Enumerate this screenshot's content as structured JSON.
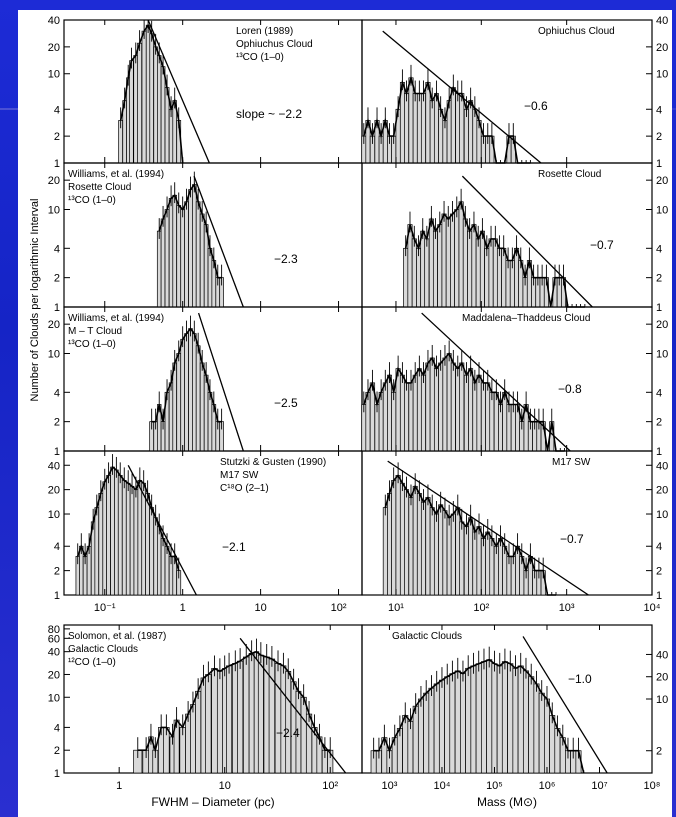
{
  "ylabel": "Number of Clouds per logarithmic Interval",
  "left_xlabel": "FWHM – Diameter (pc)",
  "right_xlabel": "Mass (M⊙)",
  "left_xticks": [
    {
      "v": 0.1,
      "label": "10⁻¹"
    },
    {
      "v": 1,
      "label": "1"
    },
    {
      "v": 10,
      "label": "10"
    },
    {
      "v": 100,
      "label": "10²"
    }
  ],
  "right_xticks": [
    {
      "v": 10,
      "label": "10¹"
    },
    {
      "v": 100,
      "label": "10²"
    },
    {
      "v": 1000,
      "label": "10³"
    },
    {
      "v": 10000,
      "label": "10⁴"
    }
  ],
  "bottom_left_xticks": [
    {
      "v": 1,
      "label": "1"
    },
    {
      "v": 10,
      "label": "10"
    },
    {
      "v": 100,
      "label": "10²"
    }
  ],
  "bottom_right_xticks": [
    {
      "v": 1000,
      "label": "10³"
    },
    {
      "v": 10000,
      "label": "10⁴"
    },
    {
      "v": 100000,
      "label": "10⁵"
    },
    {
      "v": 1000000,
      "label": "10⁶"
    },
    {
      "v": 10000000,
      "label": "10⁷"
    },
    {
      "v": 100000000,
      "label": "10⁸"
    }
  ],
  "chart_data": [
    {
      "type": "bar",
      "panel": "left-1",
      "annotation": [
        "Loren (1989)",
        "Ophiuchus Cloud",
        "¹³CO (1–0)"
      ],
      "slope_label": "slope ~ −2.2",
      "xscale": "log",
      "yscale": "log",
      "xlim": [
        0.03,
        200
      ],
      "ylim": [
        1,
        40
      ],
      "yticks": [
        {
          "v": 1,
          "label": "1"
        },
        {
          "v": 2,
          "label": "2"
        },
        {
          "v": 4,
          "label": "4"
        },
        {
          "v": 10,
          "label": "10"
        },
        {
          "v": 20,
          "label": "20"
        },
        {
          "v": 40,
          "label": "40"
        }
      ],
      "x": [
        0.16,
        0.18,
        0.2,
        0.22,
        0.25,
        0.28,
        0.32,
        0.36,
        0.4,
        0.45,
        0.5,
        0.56,
        0.63,
        0.71,
        0.79,
        0.89,
        1.0
      ],
      "y": [
        3,
        5,
        9,
        14,
        16,
        22,
        30,
        35,
        28,
        20,
        16,
        12,
        7,
        4,
        5,
        3,
        1
      ],
      "fit": {
        "x": [
          0.36,
          2.2
        ],
        "y": [
          40,
          1
        ]
      }
    },
    {
      "type": "bar",
      "panel": "right-1",
      "annotation": [
        "Ophiuchus Cloud"
      ],
      "slope_label": "−0.6",
      "xscale": "log",
      "yscale": "log",
      "xlim": [
        4,
        10000
      ],
      "ylim": [
        1,
        40
      ],
      "yticks": [
        {
          "v": 1,
          "label": "1"
        },
        {
          "v": 2,
          "label": "2"
        },
        {
          "v": 4,
          "label": "4"
        },
        {
          "v": 10,
          "label": "10"
        },
        {
          "v": 20,
          "label": "20"
        },
        {
          "v": 40,
          "label": "40"
        }
      ],
      "x": [
        4.2,
        4.7,
        5.3,
        6,
        6.7,
        7.5,
        8.4,
        9.4,
        10.6,
        11.9,
        13.3,
        15,
        16.8,
        18.8,
        21,
        23.7,
        26.6,
        29.8,
        33.4,
        37.5,
        42,
        47,
        53,
        59,
        67,
        75,
        84,
        94,
        106,
        119,
        133,
        150,
        168,
        188,
        211,
        237,
        266,
        298,
        335,
        376
      ],
      "y": [
        2,
        3,
        2,
        3,
        2,
        3,
        2,
        2,
        4,
        8,
        6,
        9,
        6,
        6,
        6,
        8,
        5,
        6,
        4,
        3,
        5,
        7,
        6,
        6,
        4,
        5,
        4,
        3,
        2,
        2,
        2,
        1,
        1,
        1,
        2,
        2,
        1,
        1,
        1,
        1
      ],
      "fit": {
        "x": [
          7,
          500
        ],
        "y": [
          30,
          1
        ]
      }
    },
    {
      "type": "bar",
      "panel": "left-2",
      "annotation": [
        "Williams, et al. (1994)",
        "Rosette Cloud",
        "¹³CO (1–0)"
      ],
      "slope_label": "−2.3",
      "xscale": "log",
      "yscale": "log",
      "xlim": [
        0.03,
        200
      ],
      "ylim": [
        1,
        30
      ],
      "yticks": [
        {
          "v": 1,
          "label": "1"
        },
        {
          "v": 2,
          "label": "2"
        },
        {
          "v": 4,
          "label": "4"
        },
        {
          "v": 10,
          "label": "10"
        },
        {
          "v": 20,
          "label": "20"
        }
      ],
      "x": [
        0.5,
        0.56,
        0.63,
        0.71,
        0.79,
        0.89,
        1.0,
        1.12,
        1.26,
        1.41,
        1.58,
        1.78,
        2.0,
        2.24,
        2.51,
        2.82,
        3.16
      ],
      "y": [
        6,
        8,
        10,
        13,
        14,
        11,
        10,
        12,
        16,
        18,
        12,
        9,
        7,
        4,
        3,
        2,
        2
      ],
      "fit": {
        "x": [
          1.4,
          6
        ],
        "y": [
          22,
          1
        ]
      }
    },
    {
      "type": "bar",
      "panel": "right-2",
      "annotation": [
        "Rosette Cloud"
      ],
      "slope_label": "−0.7",
      "xscale": "log",
      "yscale": "log",
      "xlim": [
        4,
        10000
      ],
      "ylim": [
        1,
        30
      ],
      "yticks": [
        {
          "v": 1,
          "label": "1"
        },
        {
          "v": 2,
          "label": "2"
        },
        {
          "v": 4,
          "label": "4"
        },
        {
          "v": 10,
          "label": "10"
        },
        {
          "v": 20,
          "label": "20"
        }
      ],
      "x": [
        13,
        14.6,
        16.4,
        18.4,
        20.6,
        23,
        26,
        29,
        32.6,
        36.6,
        41,
        46,
        51.6,
        58,
        65,
        73,
        82,
        92,
        103,
        116,
        130,
        146,
        163,
        183,
        206,
        231,
        259,
        290,
        326,
        366,
        410,
        460,
        516,
        579,
        650,
        730,
        819,
        919,
        1031,
        1157,
        1298,
        1456,
        1634
      ],
      "y": [
        4,
        7,
        5,
        4,
        6,
        5,
        8,
        6,
        7,
        9,
        8,
        9,
        10,
        12,
        8,
        6,
        7,
        5,
        6,
        4,
        5,
        5,
        4,
        4,
        3,
        3,
        4,
        3,
        2,
        3,
        2,
        2,
        2,
        2,
        1,
        2,
        2,
        2,
        1,
        1,
        1,
        1,
        1
      ],
      "fit": {
        "x": [
          60,
          2000
        ],
        "y": [
          22,
          1
        ]
      }
    },
    {
      "type": "bar",
      "panel": "left-3",
      "annotation": [
        "Williams, et al. (1994)",
        "M – T Cloud",
        "¹³CO (1–0)"
      ],
      "slope_label": "−2.5",
      "xscale": "log",
      "yscale": "log",
      "xlim": [
        0.03,
        200
      ],
      "ylim": [
        1,
        30
      ],
      "yticks": [
        {
          "v": 1,
          "label": "1"
        },
        {
          "v": 2,
          "label": "2"
        },
        {
          "v": 4,
          "label": "4"
        },
        {
          "v": 10,
          "label": "10"
        },
        {
          "v": 20,
          "label": "20"
        }
      ],
      "x": [
        0.4,
        0.45,
        0.5,
        0.56,
        0.63,
        0.71,
        0.79,
        0.89,
        1.0,
        1.12,
        1.26,
        1.41,
        1.58,
        1.78,
        2.0,
        2.24,
        2.51,
        2.82,
        3.16
      ],
      "y": [
        2,
        2,
        3,
        2,
        4,
        5,
        8,
        10,
        14,
        16,
        18,
        16,
        12,
        8,
        6,
        4,
        3,
        2,
        2
      ],
      "fit": {
        "x": [
          1.6,
          6
        ],
        "y": [
          26,
          1
        ]
      }
    },
    {
      "type": "bar",
      "panel": "right-3",
      "annotation": [
        "Maddalena–Thaddeus Cloud"
      ],
      "slope_label": "−0.8",
      "xscale": "log",
      "yscale": "log",
      "xlim": [
        4,
        10000
      ],
      "ylim": [
        1,
        30
      ],
      "yticks": [
        {
          "v": 1,
          "label": "1"
        },
        {
          "v": 2,
          "label": "2"
        },
        {
          "v": 4,
          "label": "4"
        },
        {
          "v": 10,
          "label": "10"
        },
        {
          "v": 20,
          "label": "20"
        }
      ],
      "x": [
        4.2,
        4.7,
        5.3,
        6,
        6.7,
        7.5,
        8.4,
        9.4,
        10.6,
        11.9,
        13.3,
        15,
        16.8,
        18.8,
        21,
        23.7,
        26.6,
        29.8,
        33.4,
        37.5,
        42,
        47,
        53,
        59,
        67,
        75,
        84,
        94,
        106,
        119,
        133,
        150,
        168,
        188,
        211,
        237,
        266,
        298,
        335,
        376,
        422,
        473,
        531,
        596,
        669,
        750,
        842,
        945
      ],
      "y": [
        3,
        4,
        5,
        3,
        4,
        5,
        6,
        4,
        7,
        6,
        5,
        5,
        6,
        7,
        6,
        8,
        9,
        7,
        8,
        9,
        10,
        8,
        7,
        8,
        6,
        7,
        5,
        6,
        5,
        5,
        4,
        4,
        3,
        4,
        3,
        3,
        3,
        2,
        3,
        2,
        2,
        2,
        2,
        1,
        2,
        1,
        1,
        1
      ],
      "fit": {
        "x": [
          20,
          1100
        ],
        "y": [
          26,
          1
        ]
      }
    },
    {
      "type": "bar",
      "panel": "left-4",
      "annotation": [
        "Stutzki & Gusten (1990)",
        "M17 SW",
        "C¹⁸O (2–1)"
      ],
      "slope_label": "−2.1",
      "xscale": "log",
      "yscale": "log",
      "xlim": [
        0.03,
        200
      ],
      "ylim": [
        1,
        60
      ],
      "yticks": [
        {
          "v": 1,
          "label": "1"
        },
        {
          "v": 2,
          "label": "2"
        },
        {
          "v": 4,
          "label": "4"
        },
        {
          "v": 10,
          "label": "10"
        },
        {
          "v": 20,
          "label": "20"
        },
        {
          "v": 40,
          "label": "40"
        }
      ],
      "x": [
        0.045,
        0.05,
        0.056,
        0.063,
        0.071,
        0.079,
        0.089,
        0.1,
        0.112,
        0.126,
        0.141,
        0.158,
        0.178,
        0.2,
        0.224,
        0.251,
        0.282,
        0.316,
        0.355,
        0.4,
        0.45,
        0.5,
        0.56,
        0.63,
        0.71,
        0.79,
        0.89
      ],
      "y": [
        3,
        4,
        3,
        4,
        8,
        12,
        18,
        25,
        30,
        38,
        35,
        30,
        26,
        24,
        22,
        20,
        26,
        24,
        18,
        12,
        9,
        7,
        5,
        4,
        3,
        3,
        2
      ],
      "fit": {
        "x": [
          0.2,
          1.5
        ],
        "y": [
          40,
          1
        ]
      }
    },
    {
      "type": "bar",
      "panel": "right-4",
      "annotation": [
        "M17 SW"
      ],
      "slope_label": "−0.7",
      "xscale": "log",
      "yscale": "log",
      "xlim": [
        4,
        10000
      ],
      "ylim": [
        1,
        60
      ],
      "yticks": [
        {
          "v": 1,
          "label": "1"
        },
        {
          "v": 2,
          "label": "2"
        },
        {
          "v": 4,
          "label": "4"
        },
        {
          "v": 10,
          "label": "10"
        },
        {
          "v": 20,
          "label": "20"
        },
        {
          "v": 40,
          "label": "40"
        }
      ],
      "x": [
        7.5,
        8.4,
        9.4,
        10.6,
        11.9,
        13.3,
        15,
        16.8,
        18.8,
        21,
        23.7,
        26.6,
        29.8,
        33.4,
        37.5,
        42,
        47,
        53,
        59,
        67,
        75,
        84,
        94,
        106,
        119,
        133,
        150,
        168,
        188,
        211,
        237,
        266,
        298,
        335,
        376,
        422,
        473,
        531,
        596,
        669,
        750
      ],
      "y": [
        12,
        18,
        26,
        30,
        24,
        20,
        16,
        22,
        18,
        14,
        16,
        12,
        10,
        13,
        11,
        9,
        10,
        12,
        8,
        7,
        9,
        6,
        7,
        5,
        6,
        5,
        4,
        5,
        4,
        3,
        3,
        4,
        3,
        2,
        3,
        2,
        2,
        2,
        1,
        1,
        1
      ],
      "fit": {
        "x": [
          8,
          1800
        ],
        "y": [
          45,
          1
        ]
      }
    },
    {
      "type": "bar",
      "panel": "left-5",
      "annotation": [
        "Solomon, et al. (1987)",
        "Galactic Clouds",
        "¹²CO (1–0)"
      ],
      "slope_label": "−2.4",
      "xscale": "log",
      "yscale": "log",
      "xlim": [
        0.3,
        200
      ],
      "ylim": [
        1,
        90
      ],
      "yticks": [
        {
          "v": 1,
          "label": "1"
        },
        {
          "v": 2,
          "label": "2"
        },
        {
          "v": 4,
          "label": "4"
        },
        {
          "v": 10,
          "label": "10"
        },
        {
          "v": 20,
          "label": "20"
        },
        {
          "v": 40,
          "label": "40"
        },
        {
          "v": 60,
          "label": "60"
        },
        {
          "v": 80,
          "label": "80"
        }
      ],
      "x": [
        1.5,
        1.8,
        2.0,
        2.2,
        2.5,
        2.8,
        3.2,
        3.5,
        4,
        4.5,
        5,
        5.6,
        6.3,
        7,
        8,
        9,
        10,
        11,
        12.6,
        14,
        16,
        18,
        20,
        22,
        25,
        28,
        32,
        36,
        40,
        45,
        50,
        56,
        63,
        71,
        79,
        89,
        100
      ],
      "y": [
        2,
        2,
        3,
        2,
        4,
        4,
        3,
        5,
        4,
        6,
        8,
        12,
        18,
        20,
        24,
        22,
        24,
        26,
        28,
        30,
        34,
        38,
        40,
        36,
        34,
        32,
        28,
        26,
        22,
        16,
        12,
        10,
        6,
        4,
        3,
        2,
        2
      ],
      "fit": {
        "x": [
          14,
          140
        ],
        "y": [
          60,
          1
        ]
      }
    },
    {
      "type": "bar",
      "panel": "right-5",
      "annotation": [
        "Galactic Clouds"
      ],
      "slope_label": "−1.0",
      "xscale": "log",
      "yscale": "log",
      "xlim": [
        300,
        100000000
      ],
      "ylim": [
        1,
        100
      ],
      "yticks": [
        {
          "v": 2,
          "label": "2"
        },
        {
          "v": 10,
          "label": "10"
        },
        {
          "v": 20,
          "label": "20"
        },
        {
          "v": 40,
          "label": "40"
        }
      ],
      "x": [
        500,
        630,
        800,
        1000,
        1260,
        1580,
        2000,
        2510,
        3160,
        3980,
        5010,
        6310,
        7940,
        10000,
        12600,
        15800,
        20000,
        25100,
        31600,
        39800,
        50100,
        63100,
        79400,
        100000,
        126000,
        158000,
        200000,
        251000,
        316000,
        398000,
        501000,
        631000,
        794000,
        1000000,
        1260000,
        1580000,
        2000000,
        2510000,
        3160000,
        3980000,
        5010000
      ],
      "y": [
        2,
        2,
        3,
        2,
        3,
        4,
        6,
        5,
        8,
        10,
        12,
        14,
        16,
        18,
        20,
        22,
        24,
        22,
        26,
        28,
        30,
        32,
        34,
        30,
        28,
        32,
        30,
        26,
        28,
        24,
        20,
        16,
        12,
        10,
        6,
        4,
        3,
        2,
        2,
        2,
        1
      ],
      "fit": {
        "x": [
          350000,
          14000000
        ],
        "y": [
          70,
          1
        ]
      }
    }
  ]
}
